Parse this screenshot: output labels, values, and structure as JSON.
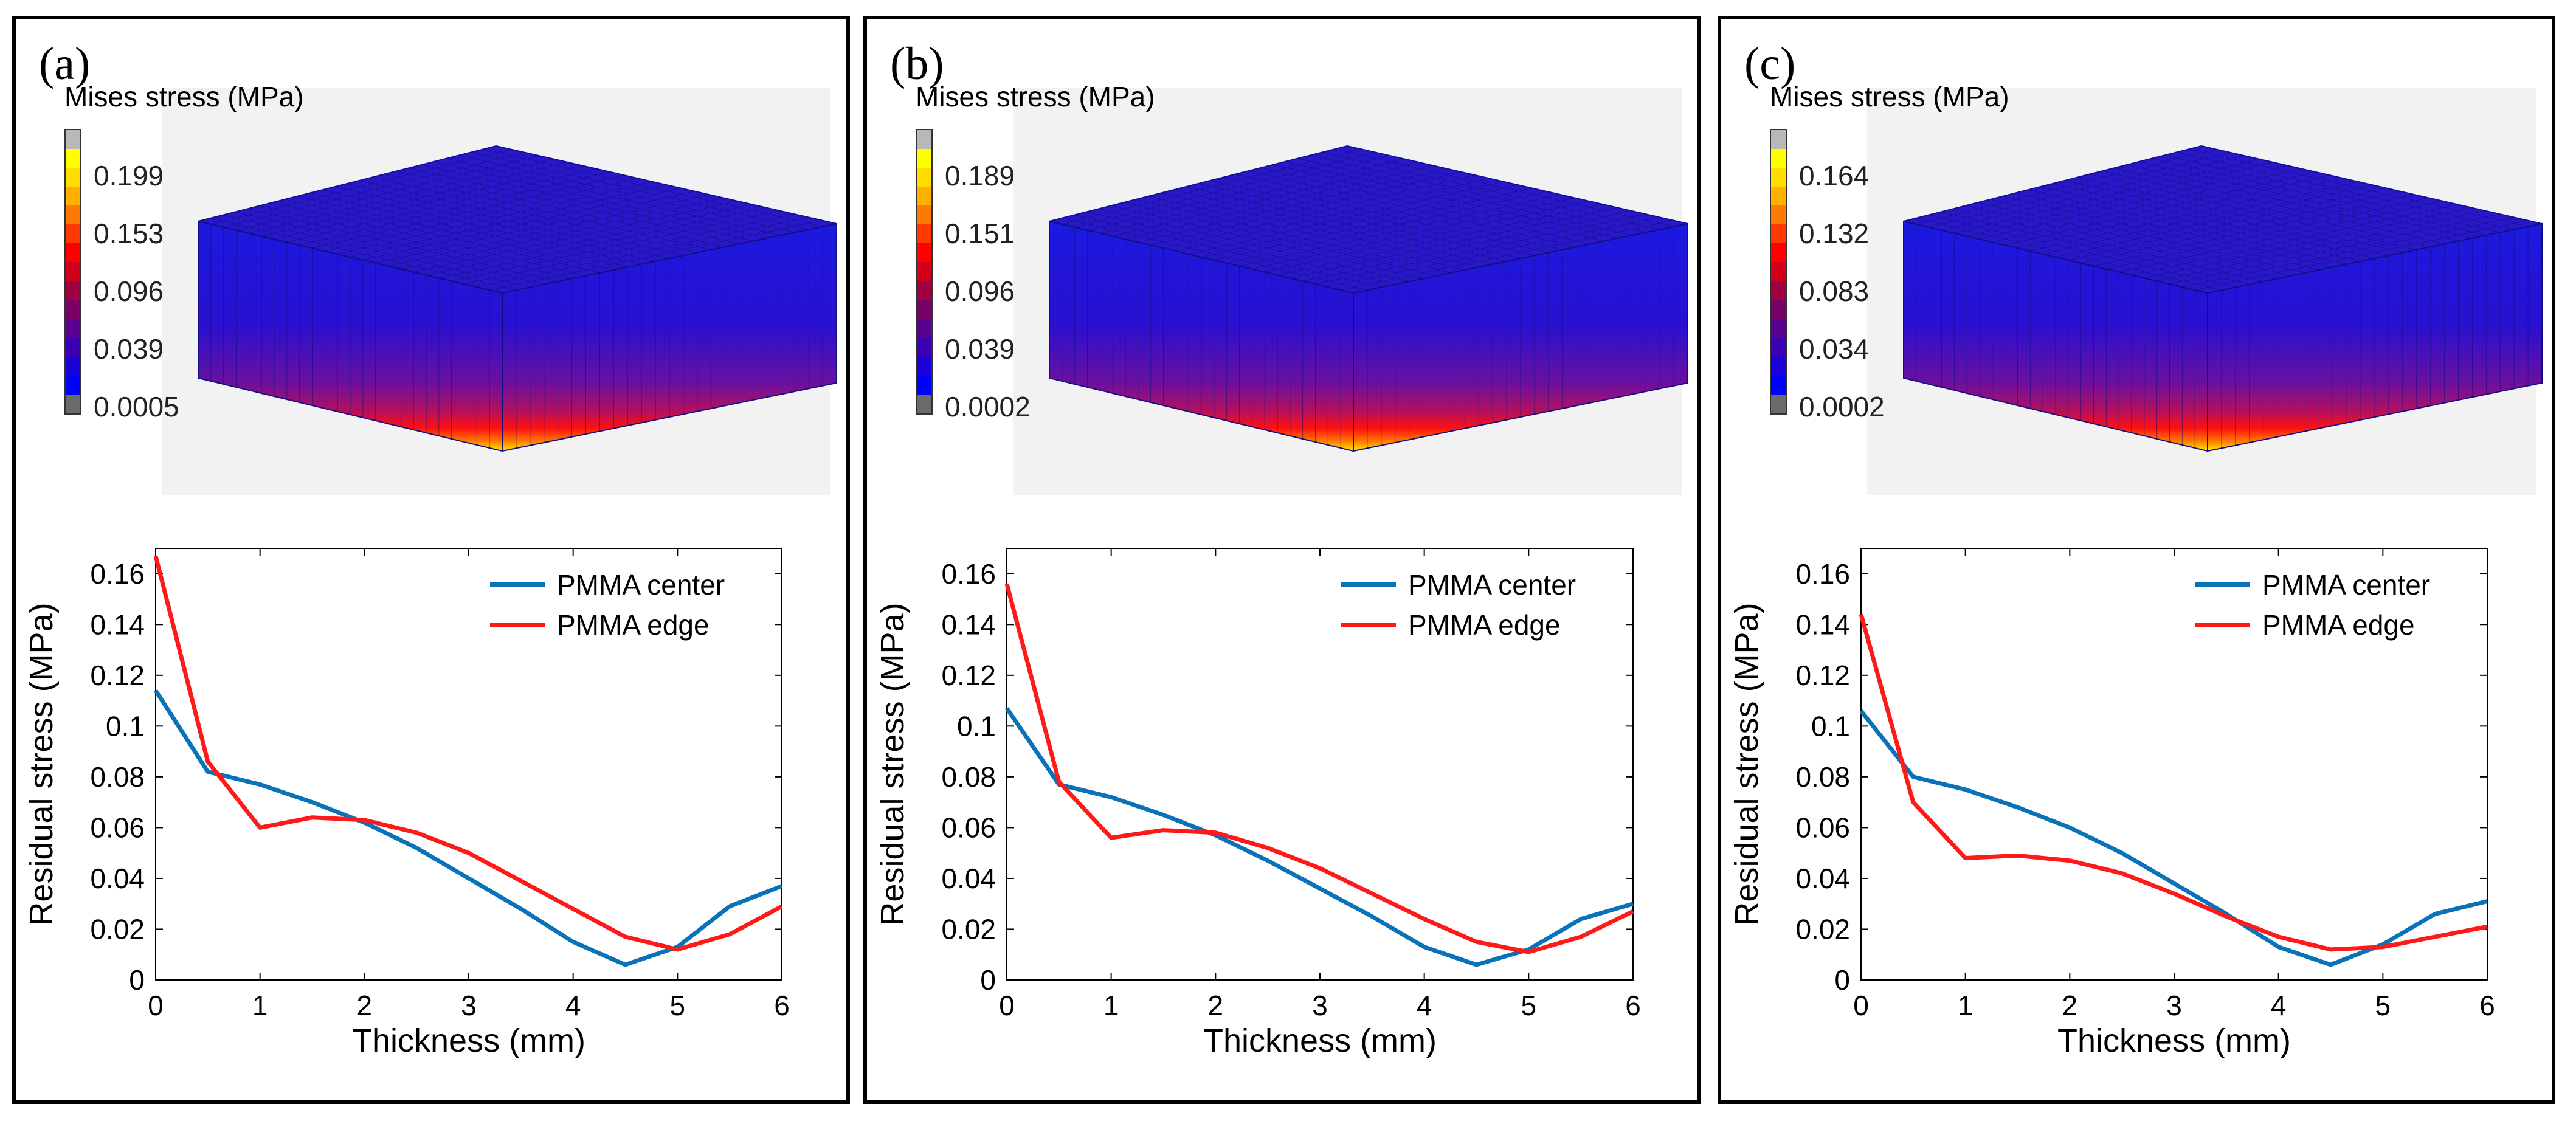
{
  "colors": {
    "center": "#0a72b8",
    "edge": "#ff1a1a"
  },
  "colorbar_colors": [
    "#6a6a6a",
    "#0000ff",
    "#1a00d9",
    "#3a00b6",
    "#5a008f",
    "#7a0066",
    "#a00040",
    "#d0001a",
    "#ff0000",
    "#ff3a00",
    "#ff7a00",
    "#ffb000",
    "#ffdd00",
    "#ffff00",
    "#b8b8b8"
  ],
  "panels": [
    {
      "label": "(a)",
      "fem": {
        "title": "Mises stress (MPa)",
        "ticks": [
          "0.199",
          "0.153",
          "0.096",
          "0.039",
          "0.0005"
        ]
      },
      "chart_data": {
        "type": "line",
        "xlabel": "Thickness (mm)",
        "ylabel": "Residual stress (MPa)",
        "xlim": [
          0,
          6
        ],
        "ylim": [
          0,
          0.17
        ],
        "xticks": [
          0,
          1,
          2,
          3,
          4,
          5,
          6
        ],
        "xtick_labels": [
          "0",
          "1",
          "2",
          "3",
          "4",
          "5",
          "6"
        ],
        "yticks": [
          0,
          0.02,
          0.04,
          0.06,
          0.08,
          0.1,
          0.12,
          0.14,
          0.16
        ],
        "ytick_labels": [
          "0",
          "0.02",
          "0.04",
          "0.06",
          "0.08",
          "0.1",
          "0.12",
          "0.14",
          "0.16"
        ],
        "x": [
          0,
          0.5,
          1,
          1.5,
          2,
          2.5,
          3,
          3.5,
          4,
          4.5,
          5,
          5.5,
          6
        ],
        "series": [
          {
            "name": "PMMA center",
            "color_key": "center",
            "values": [
              0.114,
              0.082,
              0.077,
              0.07,
              0.062,
              0.052,
              0.04,
              0.028,
              0.015,
              0.006,
              0.013,
              0.029,
              0.037
            ]
          },
          {
            "name": "PMMA edge",
            "color_key": "edge",
            "values": [
              0.167,
              0.086,
              0.06,
              0.064,
              0.063,
              0.058,
              0.05,
              0.039,
              0.028,
              0.017,
              0.012,
              0.018,
              0.029
            ]
          }
        ],
        "legend_position": "top-right"
      }
    },
    {
      "label": "(b)",
      "fem": {
        "title": "Mises stress (MPa)",
        "ticks": [
          "0.189",
          "0.151",
          "0.096",
          "0.039",
          "0.0002"
        ]
      },
      "chart_data": {
        "type": "line",
        "xlabel": "Thickness (mm)",
        "ylabel": "Residual stress (MPa)",
        "xlim": [
          0,
          6
        ],
        "ylim": [
          0,
          0.17
        ],
        "xticks": [
          0,
          1,
          2,
          3,
          4,
          5,
          6
        ],
        "xtick_labels": [
          "0",
          "1",
          "2",
          "3",
          "4",
          "5",
          "6"
        ],
        "yticks": [
          0,
          0.02,
          0.04,
          0.06,
          0.08,
          0.1,
          0.12,
          0.14,
          0.16
        ],
        "ytick_labels": [
          "0",
          "0.02",
          "0.04",
          "0.06",
          "0.08",
          "0.1",
          "0.12",
          "0.14",
          "0.16"
        ],
        "x": [
          0,
          0.5,
          1,
          1.5,
          2,
          2.5,
          3,
          3.5,
          4,
          4.5,
          5,
          5.5,
          6
        ],
        "series": [
          {
            "name": "PMMA center",
            "color_key": "center",
            "values": [
              0.107,
              0.077,
              0.072,
              0.065,
              0.057,
              0.047,
              0.036,
              0.025,
              0.013,
              0.006,
              0.012,
              0.024,
              0.03
            ]
          },
          {
            "name": "PMMA edge",
            "color_key": "edge",
            "values": [
              0.156,
              0.078,
              0.056,
              0.059,
              0.058,
              0.052,
              0.044,
              0.034,
              0.024,
              0.015,
              0.011,
              0.017,
              0.027
            ]
          }
        ],
        "legend_position": "top-right"
      }
    },
    {
      "label": "(c)",
      "fem": {
        "title": "Mises stress (MPa)",
        "ticks": [
          "0.164",
          "0.132",
          "0.083",
          "0.034",
          "0.0002"
        ]
      },
      "chart_data": {
        "type": "line",
        "xlabel": "Thickness (mm)",
        "ylabel": "Residual stress (MPa)",
        "xlim": [
          0,
          6
        ],
        "ylim": [
          0,
          0.17
        ],
        "xticks": [
          0,
          1,
          2,
          3,
          4,
          5,
          6
        ],
        "xtick_labels": [
          "0",
          "1",
          "2",
          "3",
          "4",
          "5",
          "6"
        ],
        "yticks": [
          0,
          0.02,
          0.04,
          0.06,
          0.08,
          0.1,
          0.12,
          0.14,
          0.16
        ],
        "ytick_labels": [
          "0",
          "0.02",
          "0.04",
          "0.06",
          "0.08",
          "0.1",
          "0.12",
          "0.14",
          "0.16"
        ],
        "x": [
          0,
          0.5,
          1,
          1.5,
          2,
          2.5,
          3,
          3.5,
          4,
          4.5,
          5,
          5.5,
          6
        ],
        "series": [
          {
            "name": "PMMA center",
            "color_key": "center",
            "values": [
              0.106,
              0.08,
              0.075,
              0.068,
              0.06,
              0.05,
              0.038,
              0.026,
              0.013,
              0.006,
              0.014,
              0.026,
              0.031
            ]
          },
          {
            "name": "PMMA edge",
            "color_key": "edge",
            "values": [
              0.144,
              0.07,
              0.048,
              0.049,
              0.047,
              0.042,
              0.034,
              0.025,
              0.017,
              0.012,
              0.013,
              0.017,
              0.021
            ]
          }
        ],
        "legend_position": "top-right"
      }
    }
  ]
}
